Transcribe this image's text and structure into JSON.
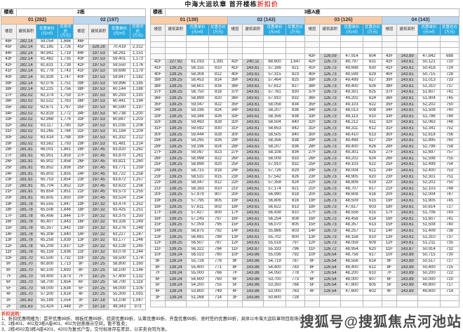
{
  "title": {
    "prefix": "中海大运玖章 首开楼栋",
    "highlight": "折扣价"
  },
  "colors": {
    "orange": "#facda9",
    "blue": "#bdd7ee",
    "cyan": "#29abe2",
    "red": "#e23a2e",
    "watermark_gray": "#4a4a4a"
  },
  "watermark": "搜狐号@搜狐焦点河池站",
  "footnotes": {
    "heading": "折扣说明：",
    "items": [
      "1、折扣优惠明细为：首开优惠99折、样板优惠99折、验资优惠99折、认筹优惠99折、开盘优惠99折、准时签约优惠99折，具体以中海大运玖章项目现场销售情况为准；",
      "2、2栋401、402及3栋A座401、402为创意展示空间，暂不售卖；",
      "3、2栋4502及3栋A座4201、4202为复式户型，交付标准存在差异，以买卖合同为准。"
    ]
  },
  "table": {
    "building_label": "楼栋",
    "col_headers": {
      "floor": "楼层",
      "area": "建筑面积",
      "unit": "优惠单价\n(元/㎡)",
      "total": "优惠总价\n(万元)"
    },
    "buildings": [
      {
        "key": "2",
        "name": "2栋",
        "groups": [
          {
            "label": "01 (282)",
            "tone": "orange",
            "rows": [
              "46F|282.14|59,054|1,666",
              "45F|282.14|61,185|1,726",
              "44F|282.14|60,942|1,719",
              "43F|282.14|61,482|1,735",
              "42F|282.14|61,631|1,739",
              "41F|282.14|61,779|1,743",
              "40F|282.14|61,928|1,747",
              "39F|282.14|62,076|1,751",
              "38F|282.14|62,225|1,756",
              "37F|282.02|62,374|1,759",
              "36F|282.02|62,522|1,763",
              "35F|282.02|62,671|1,767",
              "34F|282.02|62,819|1,772",
              "33F|282.02|62,968|1,776",
              "32F|282.02|63,117|1,780",
              "31F|282.02|63,265|1,784",
              "30F|282.02|63,414|1,788",
              "29F|282.02|63,562|1,793",
              "28F|281.91|66,001|1,861",
              "27F|281.91|65,951|1,859",
              "26F|281.91|65,902|1,858",
              "25F|281.91|65,852|1,856",
              "24F|281.91|65,803|1,855",
              "23F|281.91|65,753|1,854",
              "22F|281.91|65,704|1,852",
              "21F|281.91|65,654|1,851",
              "20F|281.91|65,605|1,850",
              "19F|281.78|65,555|1,847",
              "18F|281.78|65,506|1,846",
              "17F|281.78|65,456|1,844",
              "16F|281.78|65,407|1,843",
              "15F|281.78|65,357|1,842",
              "14F|281.78|65,308|1,840",
              "13F|281.78|65,258|1,839",
              "12F|281.78|65,209|1,837",
              "11F|281.78|65,159|1,836",
              "10F|281.70|61,500|1,732",
              "9F|281.70|60,800|1,713",
              "8F|281.70|60,100|1,693",
              "7F|281.70|59,400|1,673",
              "6F|281.70|58,700|1,654",
              "5F|281.70|58,000|1,634",
              "4F|281.70|57,300|1,614",
              "3F|281.63|55,189|1,554",
              "2F|281.63|51,424|1,448"
            ]
          },
          {
            "label": "02 (197)",
            "tone": "blue",
            "rows": [
              "46F|||",
              "45F|328.28|70,419|2,312",
              "44F|197.53|58,261|1,151",
              "43F|197.53|59,401|1,173",
              "42F|197.53|59,550|1,176",
              "41F|197.53|59,698|1,179",
              "40F|197.53|59,847|1,182",
              "39F|197.53|59,996|1,185",
              "38F|197.53|60,144|1,188",
              "37F|197.53|60,293|1,191",
              "36F|197.53|60,441|1,194",
              "35F|197.53|60,590|1,197",
              "34F|197.53|60,738|1,200",
              "33F|197.53|60,887|1,203",
              "32F|197.53|61,035|1,206",
              "31F|197.53|61,184|1,209",
              "30F|197.53|61,332|1,212",
              "29F|197.53|61,481|1,214",
              "28F|197.45|63,920|1,262",
              "27F|197.45|63,870|1,261",
              "26F|197.45|63,821|1,260",
              "25F|197.45|63,771|1,259",
              "24F|197.45|63,722|1,258",
              "23F|197.45|63,672|1,257",
              "22F|197.45|63,623|1,256",
              "21F|197.45|63,573|1,255",
              "20F|197.45|63,524|1,254",
              "19F|197.32|63,474|1,252",
              "18F|197.32|63,425|1,251",
              "17F|197.32|63,375|1,250",
              "16F|197.32|63,326|1,249",
              "15F|197.32|63,276|1,248",
              "14F|197.32|63,227|1,247",
              "13F|197.32|63,177|1,246",
              "12F|197.32|63,128|1,245",
              "11F|197.32|63,078|1,244",
              "10F|197.25|59,500|1,174",
              "9F|197.25|58,800|1,160",
              "8F|197.25|58,100|1,146",
              "7F|197.25|57,400|1,132",
              "6F|197.25|56,700|1,118",
              "5F|197.25|56,000|1,105",
              "4F|197.25|55,300|1,091",
              "3F|197.18|53,108|1,047",
              "2F|197.18|49,343|973"
            ]
          }
        ]
      },
      {
        "key": "3A",
        "name": "3栋A座",
        "groups": [
          {
            "label": "01 (139)",
            "tone": "orange",
            "rows": [
              "|||",
              "|||",
              "|||",
              "|||",
              "42F|227.92|61,033|1,391",
              "41F|139.25|58,155|810",
              "40F|139.25|58,304|812",
              "39F|139.25|58,453|814",
              "38F|139.25|58,601|816",
              "37F|139.25|58,750|818",
              "36F|139.25|58,899|820",
              "35F|139.25|59,047|822",
              "34F|139.25|59,196|824",
              "33F|139.25|59,344|826",
              "32F|139.25|59,493|828",
              "31F|139.25|59,592|830",
              "30F|139.25|59,444|828",
              "29F|139.25|59,295|826",
              "28F|139.25|59,196|824",
              "27F|139.25|59,097|823",
              "26F|139.25|58,998|822",
              "25F|139.25|58,899|820",
              "24F|139.25|58,715|818",
              "23F|139.25|58,531|815",
              "22F|139.25|58,347|812",
              "21F|139.25|58,163|810",
              "20F|139.25|57,979|807",
              "19F|139.25|57,795|805",
              "18F|139.25|57,611|802",
              "17F|139.25|57,427|800",
              "16F|139.25|57,243|797",
              "15F|139.25|57,059|795",
              "14F|139.25|56,875|792",
              "13F|139.25|56,691|789",
              "12F|139.25|56,507|787",
              "11F|139.25|56,322|784",
              "10F|139.24|56,023|780",
              "9F|139.24|55,726|776",
              "8F|139.24|55,400|771",
              "7F|139.24|55,000|766",
              "6F|139.24|54,600|760",
              "5F|139.24|54,200|755",
              "4F|139.24|53,800|749",
              "3F|139.24|51,268|714",
              "|||"
            ]
          },
          {
            "label": "02 (143)",
            "tone": "blue",
            "rows": [
              "|||",
              "|||",
              "|||",
              "|||",
              "42F|240.11|68,600|1,647",
              "41F|143.61|57,166|821",
              "40F|143.61|57,315|823",
              "39F|143.61|57,464|825",
              "38F|143.61|57,612|827",
              "37F|143.61|57,761|830",
              "36F|143.61|57,910|832",
              "35F|143.61|58,058|834",
              "34F|143.61|58,207|836",
              "33F|143.61|58,356|838",
              "32F|143.61|58,504|840",
              "31F|143.61|58,653|842",
              "30F|143.61|58,505|840",
              "29F|143.61|58,356|838",
              "28F|143.61|58,207|836",
              "27F|143.61|58,108|834",
              "26F|143.61|58,009|833",
              "25F|143.61|57,910|832",
              "24F|143.61|57,726|829",
              "23F|143.61|57,542|826",
              "22F|143.61|57,358|824",
              "21F|143.61|57,174|821",
              "20F|143.61|56,990|818",
              "19F|143.61|56,806|816",
              "18F|143.61|56,622|813",
              "17F|143.61|56,438|810",
              "16F|143.61|56,254|808",
              "15F|143.61|56,070|805",
              "14F|143.61|55,886|803",
              "13F|143.61|55,702|800",
              "12F|143.61|55,518|797",
              "11F|143.87|55,333|796",
              "10F|143.86|55,036|792",
              "9F|143.86|54,719|787",
              "8F|143.86|54,400|783",
              "7F|143.86|54,050|778",
              "6F|143.86|53,700|773",
              "5F|143.86|53,350|768",
              "4F|143.86|53,000|763",
              "3F|143.86|50,600|728",
              "|||"
            ]
          },
          {
            "label": "03 (126)",
            "tone": "orange",
            "rows": [
              "|||",
              "|||",
              "|||",
              "43F|126.09|47,914|604",
              "42F|126.73|49,797|631",
              "41F|126.73|49,698|630",
              "40F|126.73|49,599|629",
              "39F|126.73|49,499|627",
              "38F|126.73|49,400|626",
              "37F|126.73|49,301|625",
              "36F|126.73|49,202|624",
              "35F|126.73|49,103|622",
              "34F|126.73|48,013|608",
              "33F|126.73|48,113|610",
              "32F|126.73|48,212|611",
              "31F|126.73|48,311|612",
              "30F|126.73|48,410|613",
              "29F|126.73|49,499|627",
              "28F|126.73|49,400|626",
              "27F|126.73|49,301|625",
              "26F|126.73|49,202|624",
              "25F|126.73|49,103|622",
              "24F|126.73|49,004|621",
              "23F|126.73|48,905|620",
              "22F|126.73|48,806|619",
              "21F|126.73|48,707|617",
              "20F|126.73|48,608|616",
              "19F|126.73|48,509|615",
              "18F|126.73|47,617|603",
              "17F|126.73|48,556|615",
              "16F|126.73|48,456|614",
              "15F|126.73|48,357|613",
              "14F|126.73|48,257|612",
              "13F|126.73|48,158|610",
              "12F|126.73|48,059|609",
              "11F|126.72|48,954|620",
              "10F|126.54|48,756|617",
              "9F|126.54|48,556|614",
              "8F|126.54|48,400|612",
              "7F|126.54|48,200|610",
              "6F|126.54|48,000|607",
              "5F|126.54|47,800|605",
              "4F|126.54|47,600|602",
              "|||",
              "|||"
            ]
          },
          {
            "label": "04 (143)",
            "tone": "blue",
            "rows": [
              "|||",
              "|||",
              "|||",
              "43F|143.89|47,842|688",
              "42F|143.61|50,121|720",
              "41F|143.61|50,418|724",
              "40F|143.61|50,715|728",
              "39F|143.61|51,013|733",
              "38F|143.61|51,310|737",
              "37F|143.61|51,607|741",
              "36F|143.61|51,904|745",
              "35F|143.61|52,202|750",
              "34F|143.61|51,508|740",
              "33F|143.61|51,786|744",
              "32F|143.61|52,063|748",
              "31F|143.61|52,341|752",
              "30F|143.61|52,618|756",
              "29F|143.61|52,895|760",
              "28F|143.61|52,796|758",
              "27F|143.61|52,697|757",
              "26F|143.61|52,598|755",
              "25F|143.61|52,499|754",
              "24F|143.61|52,400|753",
              "23F|143.61|52,301|751",
              "22F|143.61|52,202|750",
              "21F|143.61|52,103|748",
              "20F|143.61|52,004|747",
              "19F|143.61|51,905|745",
              "18F|143.61|50,614|727",
              "17F|143.61|51,706|743",
              "16F|143.61|51,607|741",
              "15F|143.61|51,508|740",
              "14F|143.61|51,409|738",
              "13F|143.61|51,310|737",
              "12F|143.61|51,211|735",
              "11F|143.87|50,914|732",
              "10F|143.89|50,715|730",
              "9F|143.89|50,517|727",
              "8F|143.89|50,400|725",
              "7F|143.89|50,200|722",
              "6F|143.89|50,000|720",
              "5F|143.89|49,800|717",
              "4F|143.89|49,600|714",
              "|||",
              "|||"
            ]
          }
        ]
      }
    ]
  }
}
